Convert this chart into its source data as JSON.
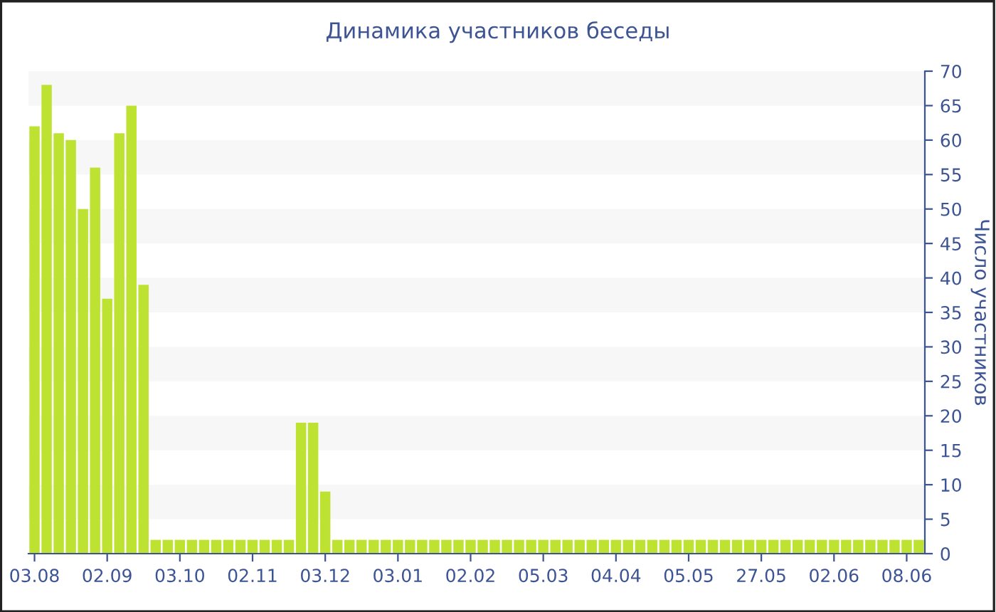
{
  "chart_data": {
    "type": "bar",
    "title": "Динамика участников беседы",
    "ylabel": "Число участников",
    "categories": [
      "03.08",
      null,
      null,
      null,
      null,
      null,
      "02.09",
      null,
      null,
      null,
      null,
      null,
      "03.10",
      null,
      null,
      null,
      null,
      null,
      "02.11",
      null,
      null,
      null,
      null,
      null,
      "03.12",
      null,
      null,
      null,
      null,
      null,
      "03.01",
      null,
      null,
      null,
      null,
      null,
      "02.02",
      null,
      null,
      null,
      null,
      null,
      "05.03",
      null,
      null,
      null,
      null,
      null,
      "04.04",
      null,
      null,
      null,
      null,
      null,
      "05.05",
      null,
      null,
      null,
      null,
      null,
      "27.05",
      null,
      null,
      null,
      null,
      null,
      "02.06",
      null,
      null,
      null,
      null,
      null,
      "08.06",
      null
    ],
    "values": [
      62,
      68,
      61,
      60,
      50,
      56,
      37,
      61,
      65,
      39,
      2,
      2,
      2,
      2,
      2,
      2,
      2,
      2,
      2,
      2,
      2,
      2,
      19,
      19,
      9,
      2,
      2,
      2,
      2,
      2,
      2,
      2,
      2,
      2,
      2,
      2,
      2,
      2,
      2,
      2,
      2,
      2,
      2,
      2,
      2,
      2,
      2,
      2,
      2,
      2,
      2,
      2,
      2,
      2,
      2,
      2,
      2,
      2,
      2,
      2,
      2,
      2,
      2,
      2,
      2,
      2,
      2,
      2,
      2,
      2,
      2,
      2,
      2,
      2
    ],
    "color": "#bde232",
    "ylim": [
      0,
      70
    ],
    "yticks": [
      0,
      5,
      10,
      15,
      20,
      25,
      30,
      35,
      40,
      45,
      50,
      55,
      60,
      65,
      70
    ],
    "legend": false
  }
}
